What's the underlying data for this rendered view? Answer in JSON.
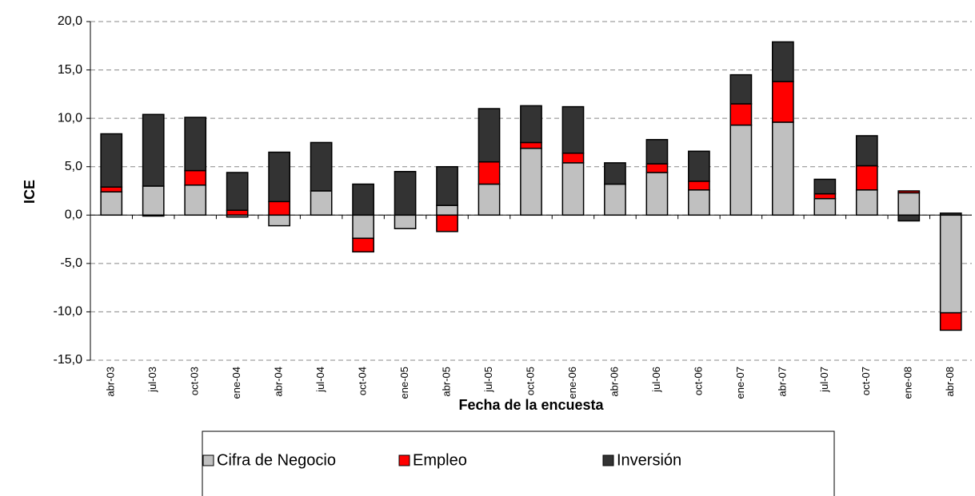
{
  "chart_data": {
    "type": "stacked_bar",
    "y_label": "ICE",
    "x_label": "Fecha de la encuesta",
    "categories": [
      "abr-03",
      "jul-03",
      "oct-03",
      "ene-04",
      "abr-04",
      "jul-04",
      "oct-04",
      "ene-05",
      "abr-05",
      "jul-05",
      "oct-05",
      "ene-06",
      "abr-06",
      "jul-06",
      "oct-06",
      "ene-07",
      "abr-07",
      "jul-07",
      "oct-07",
      "ene-08",
      "abr-08"
    ],
    "series": [
      {
        "name": "Cifra de Negocio",
        "color": "#c0c0c0",
        "values": [
          2.4,
          3.0,
          3.1,
          -0.2,
          -1.1,
          2.5,
          -2.4,
          -1.4,
          1.0,
          3.2,
          6.9,
          5.4,
          3.2,
          4.4,
          2.6,
          9.3,
          9.6,
          1.7,
          2.6,
          2.3,
          -10.1
        ]
      },
      {
        "name": "Empleo",
        "color": "#ff0000",
        "values": [
          0.5,
          -0.1,
          1.5,
          0.5,
          1.4,
          0,
          -1.4,
          0,
          -1.7,
          2.3,
          0.6,
          1.0,
          0,
          0.9,
          0.9,
          2.2,
          4.2,
          0.5,
          2.5,
          0.2,
          -1.8
        ]
      },
      {
        "name": "Inversión",
        "color": "#333333",
        "values": [
          5.5,
          7.4,
          5.5,
          3.9,
          5.1,
          5.0,
          3.2,
          4.5,
          4.0,
          5.5,
          3.8,
          4.8,
          2.2,
          2.5,
          3.1,
          3.0,
          4.1,
          1.5,
          3.1,
          -0.6,
          0.2
        ]
      }
    ],
    "ylim": [
      -15,
      20
    ],
    "yticks": [
      {
        "value": -15,
        "label": "-15,0"
      },
      {
        "value": -10,
        "label": "-10,0"
      },
      {
        "value": -5,
        "label": "-5,0"
      },
      {
        "value": 0,
        "label": "0,0"
      },
      {
        "value": 5,
        "label": "5,0"
      },
      {
        "value": 10,
        "label": "10,0"
      },
      {
        "value": 15,
        "label": "15,0"
      },
      {
        "value": 20,
        "label": "20,0"
      }
    ],
    "grid": true,
    "legend": "bottom"
  }
}
